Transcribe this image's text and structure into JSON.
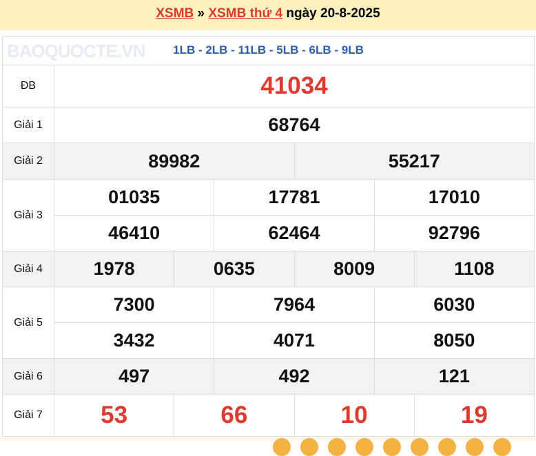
{
  "header": {
    "link1": "XSMB",
    "sep": "»",
    "link2": "XSMB thứ 4",
    "date": "ngày 20-8-2025"
  },
  "codes": "1LB - 2LB - 11LB - 5LB - 6LB - 9LB",
  "prizes": {
    "db": {
      "label": "ĐB",
      "values": [
        "41034"
      ]
    },
    "g1": {
      "label": "Giải 1",
      "values": [
        "68764"
      ]
    },
    "g2": {
      "label": "Giải 2",
      "values": [
        "89982",
        "55217"
      ]
    },
    "g3": {
      "label": "Giải 3",
      "values": [
        "01035",
        "17781",
        "17010",
        "46410",
        "62464",
        "92796"
      ]
    },
    "g4": {
      "label": "Giải 4",
      "values": [
        "1978",
        "0635",
        "8009",
        "1108"
      ]
    },
    "g5": {
      "label": "Giải 5",
      "values": [
        "7300",
        "7964",
        "6030",
        "3432",
        "4071",
        "8050"
      ]
    },
    "g6": {
      "label": "Giải 6",
      "values": [
        "497",
        "492",
        "121"
      ]
    },
    "g7": {
      "label": "Giải 7",
      "values": [
        "53",
        "66",
        "10",
        "19"
      ]
    }
  },
  "watermark": "BAOQUOCTE.VN",
  "colors": {
    "accent": "#e03a2f",
    "codes": "#2b5eab",
    "header_bg": "#fdf1c0"
  }
}
